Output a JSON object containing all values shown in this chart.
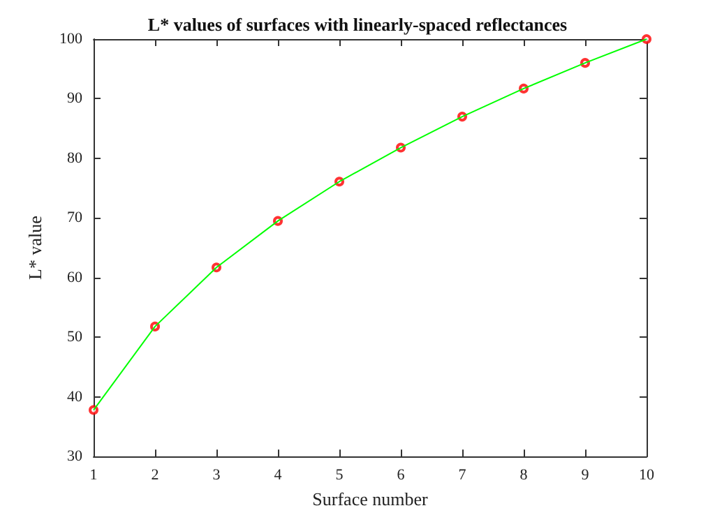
{
  "chart_data": {
    "type": "line",
    "title": "L* values of surfaces with linearly-spaced reflectances",
    "xlabel": "Surface number",
    "ylabel": "L* value",
    "x": [
      1,
      2,
      3,
      4,
      5,
      6,
      7,
      8,
      9,
      10
    ],
    "series": [
      {
        "color": "#00ff00",
        "marker": "none",
        "values": [
          37.8,
          51.8,
          61.7,
          69.5,
          76.1,
          81.8,
          87.0,
          91.7,
          96.0,
          100
        ]
      },
      {
        "type": "scatter",
        "color": "#ff0000",
        "marker": "circle",
        "values": [
          37.8,
          51.8,
          61.7,
          69.5,
          76.1,
          81.8,
          87.0,
          91.7,
          96.0,
          100
        ]
      }
    ],
    "xlim": [
      1,
      10
    ],
    "xticks": [
      1,
      2,
      3,
      4,
      5,
      6,
      7,
      8,
      9,
      10
    ],
    "ylim": [
      30,
      100
    ],
    "yticks": [
      30,
      40,
      50,
      60,
      70,
      80,
      90,
      100
    ],
    "grid": false
  }
}
